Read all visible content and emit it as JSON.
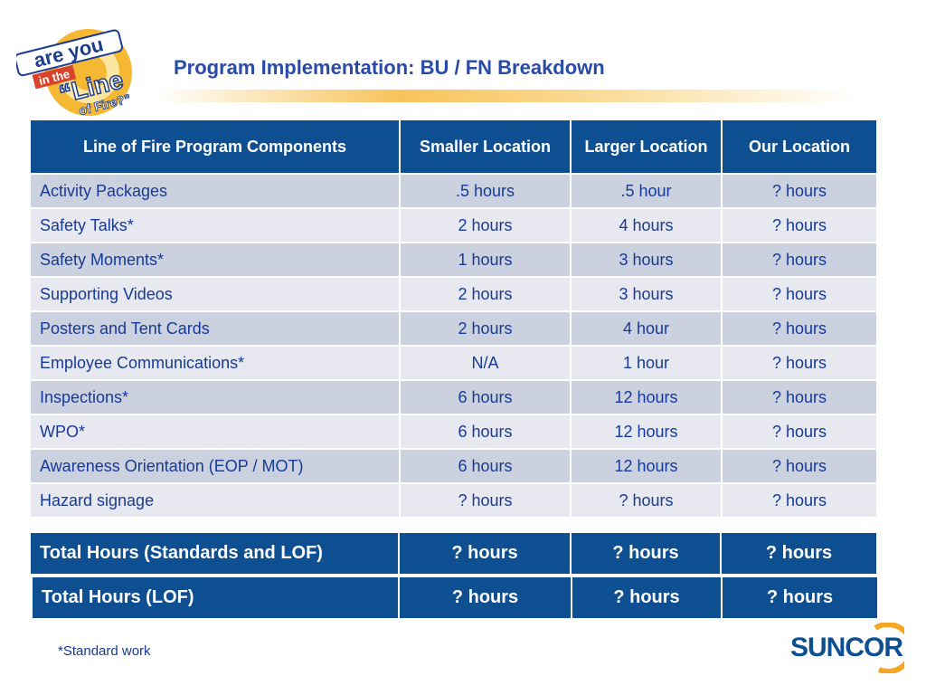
{
  "header": {
    "title": "Program Implementation: BU / FN Breakdown",
    "logo_text": [
      "are you",
      "in the",
      "“Line",
      "of Fire?”"
    ]
  },
  "table": {
    "headers": [
      "Line of Fire Program Components",
      "Smaller Location",
      "Larger Location",
      "Our Location"
    ],
    "rows": [
      [
        "Activity Packages",
        ".5 hours",
        ".5 hour",
        "? hours"
      ],
      [
        "Safety Talks*",
        "2 hours",
        "4 hours",
        "? hours"
      ],
      [
        "Safety Moments*",
        "1 hours",
        "3 hours",
        "? hours"
      ],
      [
        "Supporting Videos",
        "2 hours",
        "3 hours",
        "? hours"
      ],
      [
        "Posters and Tent Cards",
        "2 hours",
        "4 hour",
        "? hours"
      ],
      [
        "Employee Communications*",
        "N/A",
        "1 hour",
        "? hours"
      ],
      [
        "Inspections*",
        "6 hours",
        "12 hours",
        "? hours"
      ],
      [
        "WPO*",
        "6 hours",
        "12 hours",
        "? hours"
      ],
      [
        "Awareness Orientation (EOP / MOT)",
        "6 hours",
        "12 hours",
        "? hours"
      ],
      [
        "Hazard signage",
        "? hours",
        "? hours",
        "? hours"
      ]
    ]
  },
  "totals": [
    [
      "Total Hours (Standards and LOF)",
      "? hours",
      "? hours",
      "? hours"
    ],
    [
      "Total Hours (LOF)",
      "? hours",
      "? hours",
      "? hours"
    ]
  ],
  "footnote": "*Standard work",
  "brand": {
    "name": "SUNCOR",
    "accent_color": "#f5a623",
    "primary_color": "#0e4f91"
  }
}
